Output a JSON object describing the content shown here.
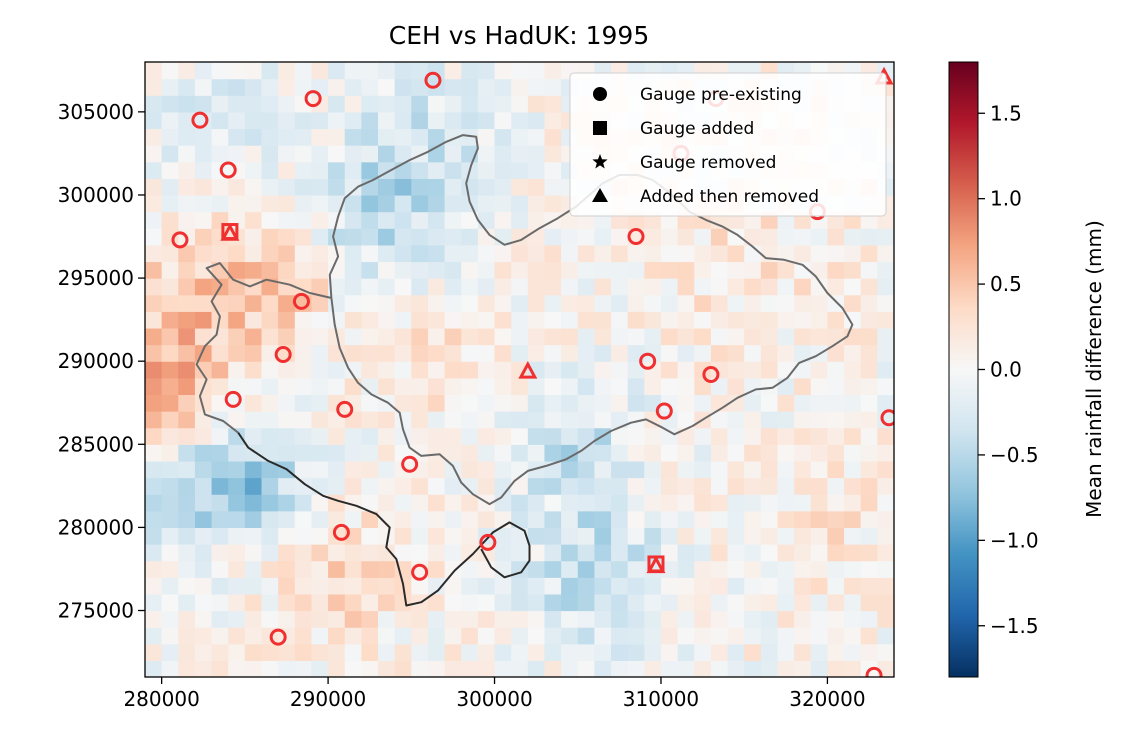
{
  "chart_data": {
    "type": "heatmap",
    "title": "CEH vs HadUK: 1995",
    "xlabel": "",
    "ylabel": "",
    "xlim": [
      279000,
      324000
    ],
    "ylim": [
      271000,
      308000
    ],
    "x_ticks": [
      280000,
      290000,
      300000,
      310000,
      320000
    ],
    "x_tick_labels": [
      "280000",
      "290000",
      "300000",
      "310000",
      "320000"
    ],
    "y_ticks": [
      275000,
      280000,
      285000,
      290000,
      295000,
      300000,
      305000
    ],
    "y_tick_labels": [
      "275000",
      "280000",
      "285000",
      "290000",
      "295000",
      "300000",
      "305000"
    ],
    "grid": false,
    "legend_position": "top-right",
    "legend": [
      {
        "marker": "circle",
        "label": "Gauge pre-existing"
      },
      {
        "marker": "square",
        "label": "Gauge added"
      },
      {
        "marker": "star",
        "label": "Gauge removed"
      },
      {
        "marker": "triangle",
        "label": "Added then removed"
      }
    ],
    "colorbar": {
      "label": "Mean rainfall difference (mm)",
      "range": [
        -1.8,
        1.8
      ],
      "ticks": [
        1.5,
        1.0,
        0.5,
        0.0,
        -0.5,
        -1.0,
        -1.5
      ],
      "tick_labels": [
        "1.5",
        "1.0",
        "0.5",
        "0.0",
        "−0.5",
        "−1.0",
        "−1.5"
      ],
      "colormap": "RdBu_r"
    },
    "grid_cell_size_data_units": 1000,
    "pre_existing_gauges": [
      [
        282300,
        304500
      ],
      [
        284000,
        301500
      ],
      [
        289100,
        305800
      ],
      [
        296300,
        306900
      ],
      [
        281100,
        297300
      ],
      [
        288400,
        293600
      ],
      [
        287300,
        290400
      ],
      [
        284300,
        287700
      ],
      [
        291000,
        287100
      ],
      [
        294900,
        283800
      ],
      [
        290800,
        279700
      ],
      [
        295500,
        277300
      ],
      [
        299600,
        279100
      ],
      [
        287000,
        273400
      ],
      [
        308500,
        297500
      ],
      [
        309200,
        290000
      ],
      [
        313000,
        289200
      ],
      [
        310200,
        287000
      ],
      [
        319400,
        299000
      ],
      [
        323700,
        286600
      ],
      [
        322800,
        271100
      ],
      [
        311200,
        302500
      ],
      [
        313300,
        305800
      ]
    ],
    "added_gauges": [
      [
        284100,
        297800
      ],
      [
        309700,
        277800
      ]
    ],
    "added_then_removed_gauges": [
      [
        284100,
        297700
      ],
      [
        309700,
        277700
      ],
      [
        302000,
        289400
      ],
      [
        323400,
        307100
      ]
    ],
    "catchment_outline_dark": [
      [
        284600,
        285700
      ],
      [
        285200,
        284800
      ],
      [
        286400,
        284000
      ],
      [
        287500,
        283500
      ],
      [
        288600,
        282600
      ],
      [
        289700,
        281900
      ],
      [
        290600,
        281600
      ],
      [
        291700,
        281300
      ],
      [
        292900,
        280800
      ],
      [
        293700,
        280000
      ],
      [
        293500,
        278800
      ],
      [
        294100,
        278100
      ],
      [
        294500,
        276600
      ],
      [
        294700,
        275300
      ],
      [
        295600,
        275500
      ],
      [
        296600,
        276200
      ],
      [
        297600,
        277400
      ],
      [
        298700,
        278400
      ],
      [
        299900,
        279700
      ],
      [
        300900,
        280300
      ],
      [
        301800,
        279800
      ],
      [
        302100,
        278900
      ],
      [
        302100,
        278000
      ],
      [
        301600,
        277300
      ],
      [
        300600,
        277000
      ],
      [
        299800,
        277600
      ],
      [
        299200,
        278700
      ]
    ],
    "catchment_outline_grey": [
      [
        284600,
        285700
      ],
      [
        283700,
        286400
      ],
      [
        282600,
        286800
      ],
      [
        282300,
        287900
      ],
      [
        282700,
        288900
      ],
      [
        282100,
        289800
      ],
      [
        282600,
        290900
      ],
      [
        283300,
        291600
      ],
      [
        283500,
        292700
      ],
      [
        283000,
        293600
      ],
      [
        283600,
        294600
      ],
      [
        282700,
        295600
      ],
      [
        283500,
        295900
      ],
      [
        284300,
        294900
      ],
      [
        285300,
        294500
      ],
      [
        286300,
        294900
      ],
      [
        287700,
        294600
      ],
      [
        288900,
        294100
      ],
      [
        290200,
        293800
      ],
      [
        290400,
        292200
      ],
      [
        290700,
        290800
      ],
      [
        291200,
        289600
      ],
      [
        291800,
        288700
      ],
      [
        292600,
        288000
      ],
      [
        293600,
        287500
      ],
      [
        294300,
        286900
      ],
      [
        294500,
        285900
      ],
      [
        294900,
        284800
      ],
      [
        295600,
        284300
      ],
      [
        296700,
        284400
      ],
      [
        297500,
        283700
      ],
      [
        298000,
        282700
      ],
      [
        298700,
        282000
      ],
      [
        299700,
        281400
      ],
      [
        300400,
        281800
      ],
      [
        301200,
        282800
      ],
      [
        302000,
        283400
      ],
      [
        303100,
        283700
      ],
      [
        304300,
        284100
      ],
      [
        305200,
        284600
      ],
      [
        306000,
        285200
      ],
      [
        307000,
        285800
      ],
      [
        308200,
        286300
      ],
      [
        309100,
        286500
      ],
      [
        310100,
        286000
      ],
      [
        310800,
        285600
      ],
      [
        311900,
        286100
      ],
      [
        312700,
        286600
      ],
      [
        313700,
        287200
      ],
      [
        314600,
        287800
      ],
      [
        315700,
        288300
      ],
      [
        316700,
        288400
      ],
      [
        317600,
        289000
      ],
      [
        318300,
        289900
      ],
      [
        319300,
        290300
      ],
      [
        320300,
        290900
      ],
      [
        321200,
        291500
      ],
      [
        321500,
        292200
      ],
      [
        320900,
        293200
      ],
      [
        320000,
        294100
      ],
      [
        319300,
        295100
      ],
      [
        318500,
        295800
      ],
      [
        317400,
        296100
      ],
      [
        316300,
        296200
      ],
      [
        315500,
        296900
      ],
      [
        314600,
        297600
      ],
      [
        313700,
        298100
      ],
      [
        312700,
        298500
      ],
      [
        311700,
        299000
      ],
      [
        311000,
        299700
      ],
      [
        310300,
        300300
      ],
      [
        309500,
        300900
      ],
      [
        308600,
        301200
      ],
      [
        307500,
        301200
      ],
      [
        306500,
        300700
      ],
      [
        305700,
        300000
      ],
      [
        304900,
        299300
      ],
      [
        303800,
        298600
      ],
      [
        302700,
        298000
      ],
      [
        301600,
        297300
      ],
      [
        300600,
        297000
      ],
      [
        299700,
        297600
      ],
      [
        299000,
        298500
      ],
      [
        298500,
        299600
      ],
      [
        298300,
        300700
      ],
      [
        298600,
        301800
      ],
      [
        299000,
        302800
      ],
      [
        298900,
        303500
      ],
      [
        298100,
        303600
      ],
      [
        297100,
        303200
      ],
      [
        296000,
        302600
      ],
      [
        294900,
        302100
      ],
      [
        293800,
        301500
      ],
      [
        292700,
        300900
      ],
      [
        291800,
        300500
      ],
      [
        291000,
        299800
      ],
      [
        290600,
        298700
      ],
      [
        290300,
        297500
      ],
      [
        290600,
        296300
      ],
      [
        290100,
        295200
      ],
      [
        290200,
        293800
      ]
    ]
  }
}
